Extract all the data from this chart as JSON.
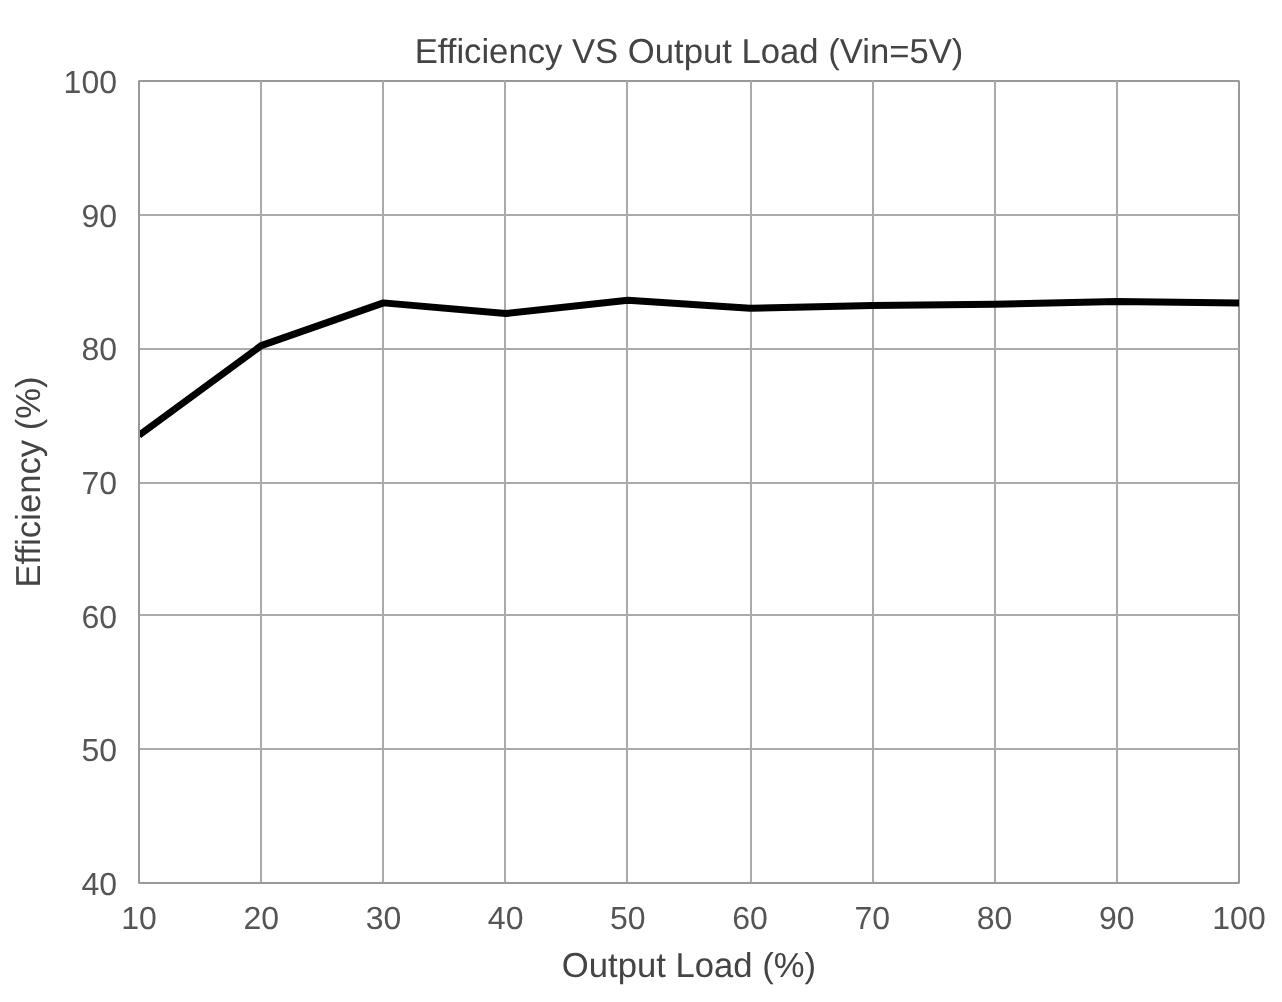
{
  "chart_data": {
    "type": "line",
    "title": "Efficiency VS Output Load (Vin=5V)",
    "xlabel": "Output Load (%)",
    "ylabel": "Efficiency (%)",
    "x": [
      10,
      20,
      30,
      40,
      50,
      60,
      70,
      80,
      90,
      100
    ],
    "series": [
      {
        "color": "#000000",
        "values": [
          73.5,
          80.2,
          83.4,
          82.6,
          83.6,
          83.0,
          83.2,
          83.3,
          83.5,
          83.4
        ]
      }
    ],
    "xlim": [
      10,
      100
    ],
    "xticks": [
      10,
      20,
      30,
      40,
      50,
      60,
      70,
      80,
      90,
      100
    ],
    "ylim": [
      40,
      100
    ],
    "yticks": [
      40,
      50,
      60,
      70,
      80,
      90,
      100
    ],
    "grid": true,
    "line_style": "solid"
  }
}
